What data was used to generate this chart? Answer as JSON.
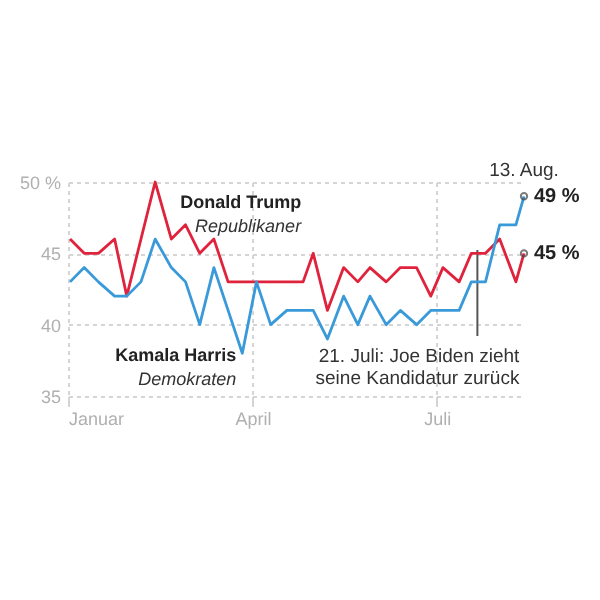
{
  "chart_data": {
    "type": "line",
    "xlim": [
      "--01-01",
      "--08-13"
    ],
    "ylim": [
      35,
      50
    ],
    "xticks": [
      {
        "value": "--01-01",
        "label": "Januar"
      },
      {
        "value": "--04-01",
        "label": "April"
      },
      {
        "value": "--07-01",
        "label": "Juli"
      }
    ],
    "yticks": [
      35,
      40,
      45,
      {
        "value": 50,
        "label": "50 %"
      }
    ],
    "grid": true,
    "marker": "none",
    "line_style": "solid",
    "series": [
      {
        "name": "Donald Trump",
        "color": "#e0233c",
        "x": [
          "--01-02",
          "--01-09",
          "--01-16",
          "--01-24",
          "--01-30",
          "--02-13",
          "--02-21",
          "--02-28",
          "--03-06",
          "--03-13",
          "--03-20",
          "--04-26",
          "--05-01",
          "--05-08",
          "--05-16",
          "--05-23",
          "--05-29",
          "--06-06",
          "--06-13",
          "--06-21",
          "--06-28",
          "--07-04",
          "--07-12",
          "--07-18",
          "--07-25",
          "--08-01",
          "--08-09",
          "--08-13"
        ],
        "values": [
          46,
          45,
          45,
          46,
          42,
          50,
          46,
          47,
          45,
          46,
          43,
          43,
          45,
          41,
          44,
          43,
          44,
          43,
          44,
          44,
          42,
          44,
          43,
          45,
          45,
          46,
          43,
          45
        ],
        "value_labels": [
          null,
          null,
          null,
          null,
          null,
          null,
          null,
          null,
          null,
          null,
          null,
          null,
          null,
          null,
          null,
          null,
          null,
          null,
          null,
          null,
          null,
          null,
          null,
          null,
          null,
          null,
          null,
          "45 %"
        ]
      },
      {
        "name": "Kamala Harris",
        "color": "#3a9ad9",
        "x": [
          "--01-02",
          "--01-09",
          "--01-16",
          "--01-24",
          "--01-30",
          "--02-06",
          "--02-13",
          "--02-21",
          "--02-28",
          "--03-06",
          "--03-13",
          "--03-20",
          "--03-27",
          "--04-03",
          "--04-10",
          "--04-18",
          "--04-26",
          "--05-01",
          "--05-08",
          "--05-16",
          "--05-23",
          "--05-29",
          "--06-06",
          "--06-13",
          "--06-21",
          "--06-28",
          "--07-04",
          "--07-12",
          "--07-18",
          "--07-25",
          "--08-01",
          "--08-09",
          "--08-13"
        ],
        "values": [
          43,
          44,
          43,
          42,
          42,
          43,
          46,
          44,
          43,
          40,
          44,
          41,
          38,
          43,
          40,
          41,
          41,
          41,
          39,
          42,
          40,
          42,
          40,
          41,
          40,
          41,
          41,
          41,
          43,
          43,
          47,
          47,
          49
        ],
        "value_labels": [
          null,
          null,
          null,
          null,
          null,
          null,
          null,
          null,
          null,
          null,
          null,
          null,
          null,
          null,
          null,
          null,
          null,
          null,
          null,
          null,
          null,
          null,
          null,
          null,
          null,
          null,
          null,
          null,
          null,
          null,
          null,
          null,
          "49 %"
        ]
      }
    ],
    "ref_lines": [
      {
        "axis": "x",
        "value": "--07-21",
        "label": "21. Juli: Joe Biden zieht seine Kandidatur zurück",
        "color": "#555555"
      }
    ],
    "annotations": [
      "Republikaner",
      "Demokraten",
      "13. Aug."
    ]
  }
}
